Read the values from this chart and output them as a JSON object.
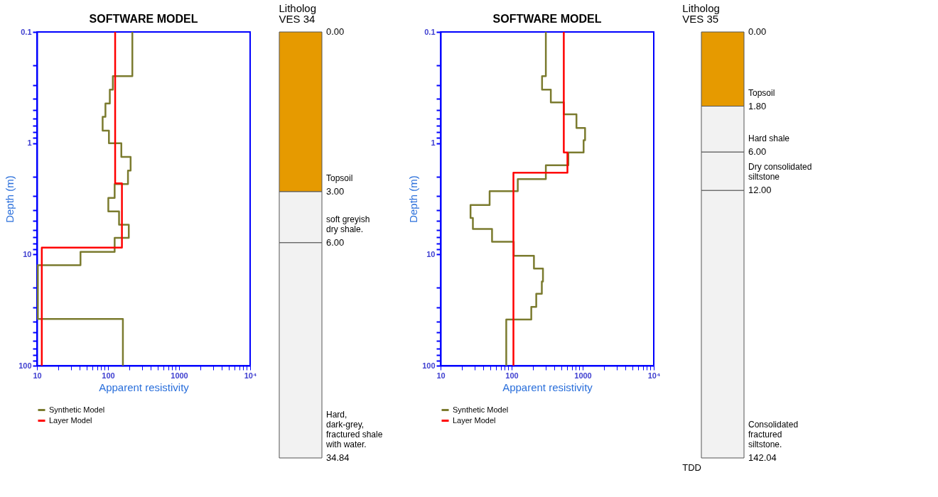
{
  "chart_data": [
    {
      "type": "line",
      "title": "SOFTWARE  MODEL",
      "xlabel": "Apparent  resistivity",
      "ylabel": "Depth (m)",
      "log": "xy",
      "legend": "bottom left",
      "xlim": [
        10,
        10000
      ],
      "ylim": [
        100,
        0.1
      ],
      "xticks": [
        10,
        {
          "value": 20,
          "label": null
        },
        {
          "value": 30,
          "label": null
        },
        {
          "value": 40,
          "label": null
        },
        {
          "value": 50,
          "label": null
        },
        {
          "value": 60,
          "label": null
        },
        {
          "value": 70,
          "label": null
        },
        {
          "value": 80,
          "label": null
        },
        {
          "value": 90,
          "label": null
        },
        100,
        {
          "value": 200,
          "label": null
        },
        {
          "value": 300,
          "label": null
        },
        {
          "value": 400,
          "label": null
        },
        {
          "value": 500,
          "label": null
        },
        {
          "value": 600,
          "label": null
        },
        {
          "value": 700,
          "label": null
        },
        {
          "value": 800,
          "label": null
        },
        {
          "value": 900,
          "label": null
        },
        1000,
        {
          "value": 2000,
          "label": null
        },
        {
          "value": 3000,
          "label": null
        },
        {
          "value": 4000,
          "label": null
        },
        {
          "value": 5000,
          "label": null
        },
        {
          "value": 6000,
          "label": null
        },
        {
          "value": 7000,
          "label": null
        },
        {
          "value": 8000,
          "label": null
        },
        {
          "value": 9000,
          "label": null
        },
        {
          "value": 10000,
          "label": "10⁴"
        }
      ],
      "yticks": [
        0.1,
        {
          "value": 0.2,
          "label": null
        },
        {
          "value": 0.3,
          "label": null
        },
        {
          "value": 0.4,
          "label": null
        },
        {
          "value": 0.5,
          "label": null
        },
        {
          "value": 0.6,
          "label": null
        },
        {
          "value": 0.7,
          "label": null
        },
        {
          "value": 0.8,
          "label": null
        },
        {
          "value": 0.9,
          "label": null
        },
        1,
        {
          "value": 2,
          "label": null
        },
        {
          "value": 3,
          "label": null
        },
        {
          "value": 4,
          "label": null
        },
        {
          "value": 5,
          "label": null
        },
        {
          "value": 6,
          "label": null
        },
        {
          "value": 7,
          "label": null
        },
        {
          "value": 8,
          "label": null
        },
        {
          "value": 9,
          "label": null
        },
        10,
        {
          "value": 20,
          "label": null
        },
        {
          "value": 30,
          "label": null
        },
        {
          "value": 40,
          "label": null
        },
        {
          "value": 50,
          "label": null
        },
        {
          "value": 60,
          "label": null
        },
        {
          "value": 70,
          "label": null
        },
        {
          "value": 80,
          "label": null
        },
        {
          "value": 90,
          "label": null
        },
        100
      ],
      "series": [
        {
          "name": "Synthetic Model",
          "color": "#7b7b2f",
          "x": [
            220,
            220,
            117,
            117,
            106,
            106,
            92,
            92,
            84,
            84,
            103,
            103,
            154,
            154,
            208,
            208,
            191,
            191,
            124,
            124,
            101,
            101,
            143,
            143,
            196,
            196,
            124,
            124,
            41,
            41,
            10.3,
            10.3,
            162,
            162
          ],
          "values": [
            0.1,
            0.25,
            0.25,
            0.33,
            0.33,
            0.44,
            0.44,
            0.58,
            0.58,
            0.77,
            0.77,
            1.0,
            1.0,
            1.33,
            1.33,
            1.76,
            1.76,
            2.33,
            2.33,
            3.1,
            3.1,
            4.1,
            4.1,
            5.4,
            5.4,
            7.1,
            7.1,
            9.5,
            9.5,
            12.5,
            12.5,
            38,
            38,
            100
          ]
        },
        {
          "name": "Layer Model",
          "color": "#ff0000",
          "x": [
            126,
            126,
            157,
            157,
            11.7,
            11.7
          ],
          "values": [
            0.1,
            2.3,
            2.3,
            8.7,
            8.7,
            100
          ]
        }
      ]
    },
    {
      "type": "other",
      "title": "Litholog",
      "subtitle": "VES 34",
      "categories": [
        "Topsoil",
        "soft greyish\ndry shale.",
        "Hard,\ndark-grey,\nfractured shale\nwith water."
      ],
      "values": [
        3.0,
        6.0,
        34.84
      ],
      "value_labels": [
        "3.00",
        "6.00",
        "34.84"
      ],
      "colors": [
        "#e69a00",
        "#f2f2f2",
        "#f2f2f2"
      ],
      "annotations": [
        "0.00"
      ]
    },
    {
      "type": "line",
      "title": "SOFTWARE  MODEL",
      "xlabel": "Apparent  resistivity",
      "ylabel": "Depth (m)",
      "log": "xy",
      "legend": "bottom left",
      "xlim": [
        10,
        10000
      ],
      "ylim": [
        100,
        0.1
      ],
      "xticks": [
        10,
        {
          "value": 20,
          "label": null
        },
        {
          "value": 30,
          "label": null
        },
        {
          "value": 40,
          "label": null
        },
        {
          "value": 50,
          "label": null
        },
        {
          "value": 60,
          "label": null
        },
        {
          "value": 70,
          "label": null
        },
        {
          "value": 80,
          "label": null
        },
        {
          "value": 90,
          "label": null
        },
        100,
        {
          "value": 200,
          "label": null
        },
        {
          "value": 300,
          "label": null
        },
        {
          "value": 400,
          "label": null
        },
        {
          "value": 500,
          "label": null
        },
        {
          "value": 600,
          "label": null
        },
        {
          "value": 700,
          "label": null
        },
        {
          "value": 800,
          "label": null
        },
        {
          "value": 900,
          "label": null
        },
        1000,
        {
          "value": 2000,
          "label": null
        },
        {
          "value": 3000,
          "label": null
        },
        {
          "value": 4000,
          "label": null
        },
        {
          "value": 5000,
          "label": null
        },
        {
          "value": 6000,
          "label": null
        },
        {
          "value": 7000,
          "label": null
        },
        {
          "value": 8000,
          "label": null
        },
        {
          "value": 9000,
          "label": null
        },
        {
          "value": 10000,
          "label": "10⁴"
        }
      ],
      "yticks": [
        0.1,
        {
          "value": 0.2,
          "label": null
        },
        {
          "value": 0.3,
          "label": null
        },
        {
          "value": 0.4,
          "label": null
        },
        {
          "value": 0.5,
          "label": null
        },
        {
          "value": 0.6,
          "label": null
        },
        {
          "value": 0.7,
          "label": null
        },
        {
          "value": 0.8,
          "label": null
        },
        {
          "value": 0.9,
          "label": null
        },
        1,
        {
          "value": 2,
          "label": null
        },
        {
          "value": 3,
          "label": null
        },
        {
          "value": 4,
          "label": null
        },
        {
          "value": 5,
          "label": null
        },
        {
          "value": 6,
          "label": null
        },
        {
          "value": 7,
          "label": null
        },
        {
          "value": 8,
          "label": null
        },
        {
          "value": 9,
          "label": null
        },
        10,
        {
          "value": 20,
          "label": null
        },
        {
          "value": 30,
          "label": null
        },
        {
          "value": 40,
          "label": null
        },
        {
          "value": 50,
          "label": null
        },
        {
          "value": 60,
          "label": null
        },
        {
          "value": 70,
          "label": null
        },
        {
          "value": 80,
          "label": null
        },
        {
          "value": 90,
          "label": null
        },
        100
      ],
      "series": [
        {
          "name": "Synthetic Model",
          "color": "#7b7b2f",
          "x": [
            303,
            303,
            268,
            268,
            356,
            356,
            542,
            542,
            817,
            817,
            1080,
            1080,
            1030,
            1030,
            628,
            628,
            303,
            303,
            122,
            122,
            49,
            49,
            26.4,
            26.4,
            28.5,
            28.5,
            53,
            53,
            107,
            107,
            206,
            206,
            276,
            276,
            266,
            266,
            222,
            222,
            189,
            189,
            84,
            84
          ],
          "values": [
            0.1,
            0.25,
            0.25,
            0.33,
            0.33,
            0.43,
            0.43,
            0.55,
            0.55,
            0.73,
            0.73,
            0.94,
            0.94,
            1.21,
            1.21,
            1.58,
            1.58,
            2.1,
            2.1,
            2.7,
            2.7,
            3.6,
            3.6,
            4.7,
            4.7,
            5.9,
            5.9,
            7.7,
            7.7,
            10.3,
            10.3,
            13.4,
            13.4,
            17.5,
            17.5,
            22.6,
            22.6,
            29.6,
            29.6,
            38.5,
            38.5,
            100
          ]
        },
        {
          "name": "Layer Model",
          "color": "#ff0000",
          "x": [
            542,
            542,
            610,
            610,
            106,
            106
          ],
          "values": [
            0.1,
            1.21,
            1.21,
            1.84,
            1.84,
            100
          ]
        }
      ]
    },
    {
      "type": "other",
      "title": "Litholog",
      "subtitle": "VES 35",
      "categories": [
        "Topsoil",
        "Hard shale",
        "Dry consolidated\nsiltstone",
        "Consolidated\nfractured\nsiltstone."
      ],
      "values": [
        1.8,
        6.0,
        12.0,
        142.04
      ],
      "value_labels": [
        "1.80",
        "6.00",
        "12.00",
        "142.04"
      ],
      "colors": [
        "#e69a00",
        "#f2f2f2",
        "#f2f2f2",
        "#f2f2f2"
      ],
      "annotations": [
        "0.00",
        "TDD"
      ]
    }
  ]
}
